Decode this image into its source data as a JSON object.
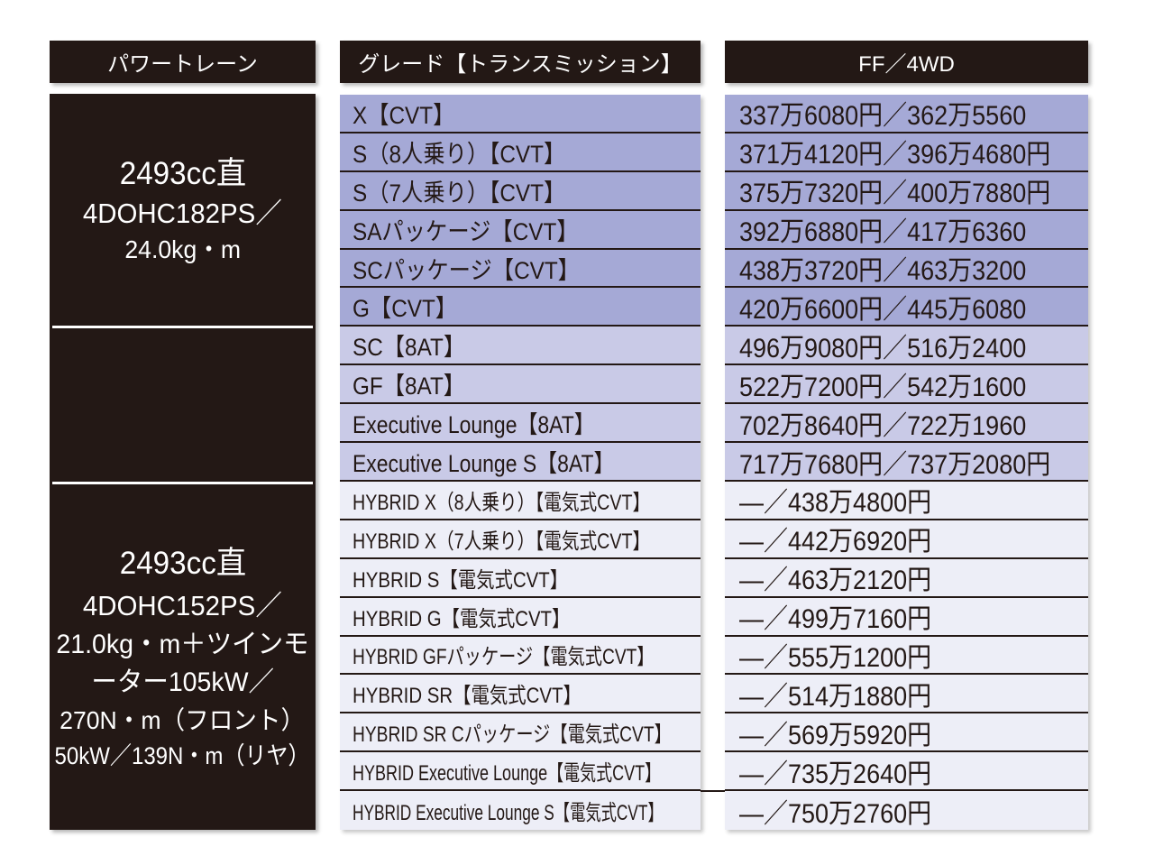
{
  "headers": {
    "powertrain": "パワートレーン",
    "grade": "グレード【トランスミッション】",
    "price": "FF／4WD"
  },
  "powertrain": [
    {
      "lines": [
        "2493cc直",
        "4DOHC182PS／",
        "24.0kg・m"
      ]
    },
    {
      "lines": []
    },
    {
      "lines": [
        "2493cc直",
        "4DOHC152PS／",
        "21.0kg・m＋ツインモ",
        "ーター105kW／",
        "270N・m（フロント）",
        "50kW／139N・m（リヤ）"
      ]
    }
  ],
  "rows": [
    {
      "grade": "X【CVT】",
      "price": "337万6080円／362万5560",
      "color": "#a5a9d6"
    },
    {
      "grade": "S（8人乗り）【CVT】",
      "price": "371万4120円／396万4680円",
      "color": "#a5a9d6"
    },
    {
      "grade": "S（7人乗り）【CVT】",
      "price": "375万7320円／400万7880円",
      "color": "#a5a9d6"
    },
    {
      "grade": "SAパッケージ【CVT】",
      "price": "392万6880円／417万6360",
      "color": "#a5a9d6"
    },
    {
      "grade": "SCパッケージ【CVT】",
      "price": "438万3720円／463万3200",
      "color": "#a5a9d6"
    },
    {
      "grade": "G【CVT】",
      "price": "420万6600円／445万6080",
      "color": "#a5a9d6"
    },
    {
      "grade": "SC【8AT】",
      "price": "496万9080円／516万2400",
      "color": "#c9cae7"
    },
    {
      "grade": "GF【8AT】",
      "price": "522万7200円／542万1600",
      "color": "#c9cae7"
    },
    {
      "grade": "Executive Lounge【8AT】",
      "price": "702万8640円／722万1960",
      "color": "#c9cae7"
    },
    {
      "grade": "Executive Lounge S【8AT】",
      "price": "717万7680円／737万2080円",
      "color": "#c9cae7"
    },
    {
      "grade": "HYBRID X（8人乗り）【電気式CVT】",
      "price": "—／438万4800円",
      "color": "#edeef7"
    },
    {
      "grade": "HYBRID X（7人乗り）【電気式CVT】",
      "price": "—／442万6920円",
      "color": "#edeef7"
    },
    {
      "grade": "HYBRID S【電気式CVT】",
      "price": "—／463万2120円",
      "color": "#edeef7"
    },
    {
      "grade": "HYBRID G【電気式CVT】",
      "price": "—／499万7160円",
      "color": "#edeef7"
    },
    {
      "grade": "HYBRID GFパッケージ【電気式CVT】",
      "price": "—／555万1200円",
      "color": "#edeef7"
    },
    {
      "grade": "HYBRID SR【電気式CVT】",
      "price": "—／514万1880円",
      "color": "#edeef7"
    },
    {
      "grade": "HYBRID SR Cパッケージ【電気式CVT】",
      "price": "—／569万5920円",
      "color": "#edeef7"
    },
    {
      "grade": "HYBRID Executive Lounge【電気式CVT】",
      "price": "—／735万2640円",
      "color": "#edeef7"
    },
    {
      "grade": "HYBRID Executive Lounge S【電気式CVT】",
      "price": "—／750万2760円",
      "color": "#edeef7"
    }
  ],
  "colors": {
    "dark": "#231815",
    "divider": "#ffffff",
    "header_text": "#ffffff",
    "text": "#231815"
  }
}
